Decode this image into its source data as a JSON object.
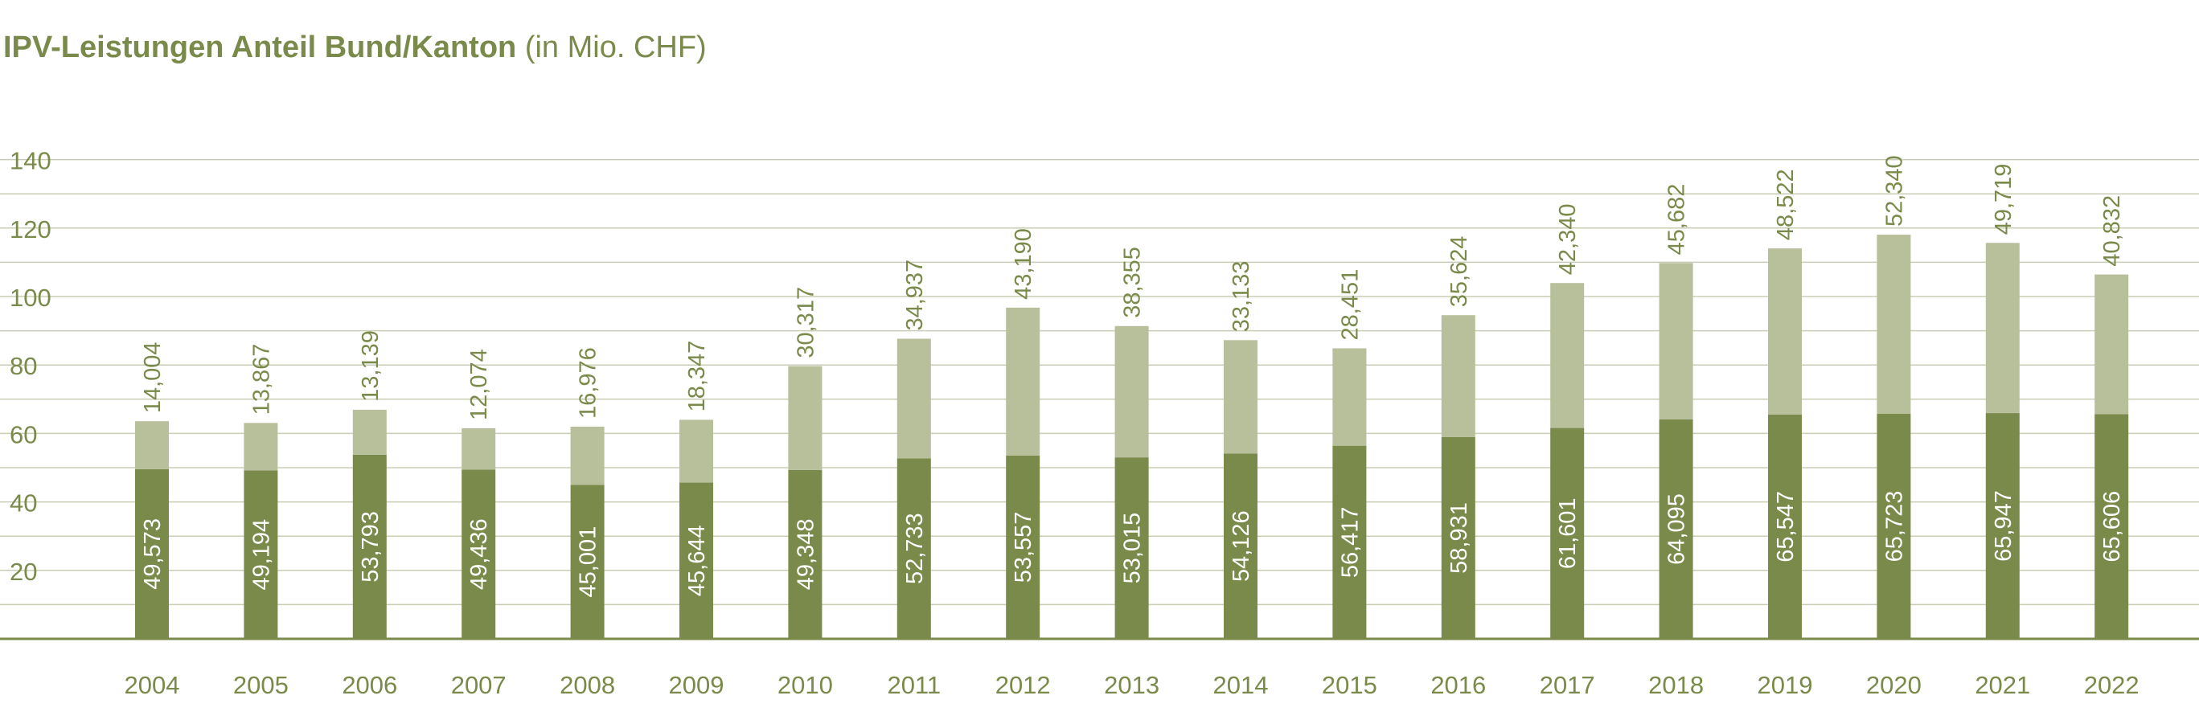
{
  "chart_data": {
    "type": "bar",
    "stacked": true,
    "title": "IPV-Leistungen Anteil Bund/Kanton",
    "title_unit": "(in Mio. CHF)",
    "categories": [
      "2004",
      "2005",
      "2006",
      "2007",
      "2008",
      "2009",
      "2010",
      "2011",
      "2012",
      "2013",
      "2014",
      "2015",
      "2016",
      "2017",
      "2018",
      "2019",
      "2020",
      "2021",
      "2022"
    ],
    "series": [
      {
        "color": "#7a8a4a",
        "label_position": "inside",
        "values": [
          49.573,
          49.194,
          53.793,
          49.436,
          45.001,
          45.644,
          49.348,
          52.733,
          53.557,
          53.015,
          54.126,
          56.417,
          58.931,
          61.601,
          64.095,
          65.547,
          65.723,
          65.947,
          65.606
        ],
        "labels": [
          "49,573",
          "49,194",
          "53,793",
          "49,436",
          "45,001",
          "45,644",
          "49,348",
          "52,733",
          "53,557",
          "53,015",
          "54,126",
          "56,417",
          "58,931",
          "61,601",
          "64,095",
          "65,547",
          "65,723",
          "65,947",
          "65,606"
        ]
      },
      {
        "color": "#b8bf9b",
        "label_position": "above",
        "values": [
          14.004,
          13.867,
          13.139,
          12.074,
          16.976,
          18.347,
          30.317,
          34.937,
          43.19,
          38.355,
          33.133,
          28.451,
          35.624,
          42.34,
          45.682,
          48.522,
          52.34,
          49.719,
          40.832
        ],
        "labels": [
          "14,004",
          "13,867",
          "13,139",
          "12,074",
          "16,976",
          "18,347",
          "30,317",
          "34,937",
          "43,190",
          "38,355",
          "33,133",
          "28,451",
          "35,624",
          "42,340",
          "45,682",
          "48,522",
          "52,340",
          "49,719",
          "40,832"
        ]
      }
    ],
    "ylim": [
      0,
      140
    ],
    "yticks": [
      20,
      40,
      60,
      80,
      100,
      120,
      140
    ],
    "ytick_labels": [
      "20",
      "40",
      "60",
      "80",
      "100",
      "120",
      "140"
    ],
    "grid_step": 10,
    "grid": true,
    "legend": "none",
    "colors": {
      "title": "#7a8a4a",
      "grid": "#c9cdb4",
      "axis": "#7a8a4a",
      "tick_text": "#7a8a4a"
    }
  }
}
